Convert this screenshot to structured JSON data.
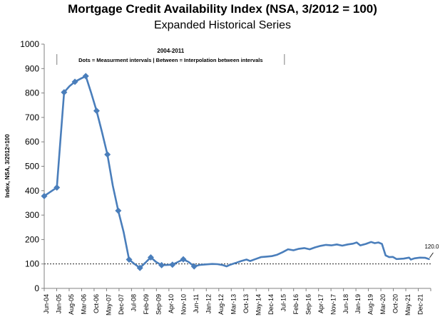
{
  "chart_data": {
    "type": "line",
    "title": "Mortgage Credit Availability Index (NSA, 3/2012 = 100)",
    "subtitle": "Expanded Historical Series",
    "ylabel": "Index, NSA, 3/2012=100",
    "xlabel": "",
    "ylim": [
      0,
      1000
    ],
    "yticks": [
      "0",
      "100",
      "200",
      "300",
      "400",
      "500",
      "600",
      "700",
      "800",
      "900",
      "1000"
    ],
    "x_tick_labels": [
      "Jun-04",
      "Jan-05",
      "Aug-05",
      "Mar-06",
      "Oct-06",
      "May-07",
      "Dec-07",
      "Jul-08",
      "Feb-09",
      "Sep-09",
      "Apr-10",
      "Nov-10",
      "Jun-11",
      "Jan-12",
      "Aug-12",
      "Mar-13",
      "Oct-13",
      "May-14",
      "Dec-14",
      "Jul-15",
      "Feb-16",
      "Sep-16",
      "Apr-17",
      "Nov-17",
      "Jun-18",
      "Jan-19",
      "Aug-19",
      "Mar-20",
      "Oct-20",
      "May-21",
      "Dec-21"
    ],
    "grid": false,
    "reference_line": {
      "value": 100,
      "style": "dashed"
    },
    "annotation_box": {
      "title": "2004-2011",
      "text": "Dots = Measurment intervals  |  Between = Interpolation between intervals",
      "x_start": "2005-01",
      "x_end": "2015-07"
    },
    "last_value_label": "120.0",
    "series": [
      {
        "color": "#4a7ebb",
        "markers": [
          {
            "x": "2004-06",
            "y": 378
          },
          {
            "x": "2005-01",
            "y": 413
          },
          {
            "x": "2005-05",
            "y": 803
          },
          {
            "x": "2005-11",
            "y": 846
          },
          {
            "x": "2006-05",
            "y": 869
          },
          {
            "x": "2006-11",
            "y": 727
          },
          {
            "x": "2007-05",
            "y": 548
          },
          {
            "x": "2007-11",
            "y": 318
          },
          {
            "x": "2008-05",
            "y": 118
          },
          {
            "x": "2008-11",
            "y": 84
          },
          {
            "x": "2009-05",
            "y": 127
          },
          {
            "x": "2009-11",
            "y": 95
          },
          {
            "x": "2010-05",
            "y": 97
          },
          {
            "x": "2010-11",
            "y": 119
          },
          {
            "x": "2011-05",
            "y": 90
          }
        ],
        "points": [
          {
            "x": "2004-06",
            "y": 378
          },
          {
            "x": "2005-01",
            "y": 413
          },
          {
            "x": "2005-03",
            "y": 610
          },
          {
            "x": "2005-05",
            "y": 803
          },
          {
            "x": "2005-08",
            "y": 828
          },
          {
            "x": "2005-11",
            "y": 846
          },
          {
            "x": "2006-02",
            "y": 858
          },
          {
            "x": "2006-05",
            "y": 869
          },
          {
            "x": "2006-08",
            "y": 800
          },
          {
            "x": "2006-11",
            "y": 727
          },
          {
            "x": "2007-02",
            "y": 640
          },
          {
            "x": "2007-05",
            "y": 548
          },
          {
            "x": "2007-08",
            "y": 420
          },
          {
            "x": "2007-11",
            "y": 318
          },
          {
            "x": "2008-02",
            "y": 230
          },
          {
            "x": "2008-05",
            "y": 118
          },
          {
            "x": "2008-08",
            "y": 100
          },
          {
            "x": "2008-11",
            "y": 84
          },
          {
            "x": "2009-02",
            "y": 105
          },
          {
            "x": "2009-05",
            "y": 127
          },
          {
            "x": "2009-08",
            "y": 108
          },
          {
            "x": "2009-11",
            "y": 95
          },
          {
            "x": "2010-02",
            "y": 96
          },
          {
            "x": "2010-05",
            "y": 97
          },
          {
            "x": "2010-08",
            "y": 108
          },
          {
            "x": "2010-11",
            "y": 119
          },
          {
            "x": "2011-02",
            "y": 108
          },
          {
            "x": "2011-05",
            "y": 90
          },
          {
            "x": "2011-08",
            "y": 96
          },
          {
            "x": "2011-11",
            "y": 98
          },
          {
            "x": "2012-03",
            "y": 100
          },
          {
            "x": "2012-06",
            "y": 99
          },
          {
            "x": "2012-09",
            "y": 95
          },
          {
            "x": "2012-11",
            "y": 90
          },
          {
            "x": "2013-01",
            "y": 97
          },
          {
            "x": "2013-04",
            "y": 104
          },
          {
            "x": "2013-07",
            "y": 112
          },
          {
            "x": "2013-10",
            "y": 118
          },
          {
            "x": "2013-12",
            "y": 112
          },
          {
            "x": "2014-03",
            "y": 120
          },
          {
            "x": "2014-06",
            "y": 128
          },
          {
            "x": "2014-09",
            "y": 130
          },
          {
            "x": "2014-12",
            "y": 132
          },
          {
            "x": "2015-03",
            "y": 138
          },
          {
            "x": "2015-06",
            "y": 148
          },
          {
            "x": "2015-09",
            "y": 160
          },
          {
            "x": "2015-12",
            "y": 156
          },
          {
            "x": "2016-03",
            "y": 162
          },
          {
            "x": "2016-06",
            "y": 165
          },
          {
            "x": "2016-09",
            "y": 160
          },
          {
            "x": "2016-12",
            "y": 168
          },
          {
            "x": "2017-03",
            "y": 174
          },
          {
            "x": "2017-06",
            "y": 178
          },
          {
            "x": "2017-09",
            "y": 176
          },
          {
            "x": "2017-12",
            "y": 180
          },
          {
            "x": "2018-03",
            "y": 175
          },
          {
            "x": "2018-06",
            "y": 180
          },
          {
            "x": "2018-09",
            "y": 183
          },
          {
            "x": "2018-11",
            "y": 188
          },
          {
            "x": "2019-01",
            "y": 176
          },
          {
            "x": "2019-04",
            "y": 182
          },
          {
            "x": "2019-07",
            "y": 190
          },
          {
            "x": "2019-09",
            "y": 185
          },
          {
            "x": "2019-11",
            "y": 188
          },
          {
            "x": "2020-01",
            "y": 182
          },
          {
            "x": "2020-03",
            "y": 135
          },
          {
            "x": "2020-05",
            "y": 128
          },
          {
            "x": "2020-07",
            "y": 129
          },
          {
            "x": "2020-09",
            "y": 120
          },
          {
            "x": "2021-01",
            "y": 122
          },
          {
            "x": "2021-04",
            "y": 126
          },
          {
            "x": "2021-05",
            "y": 118
          },
          {
            "x": "2021-07",
            "y": 123
          },
          {
            "x": "2021-10",
            "y": 126
          },
          {
            "x": "2022-01",
            "y": 125
          },
          {
            "x": "2022-03",
            "y": 120
          }
        ]
      }
    ]
  }
}
